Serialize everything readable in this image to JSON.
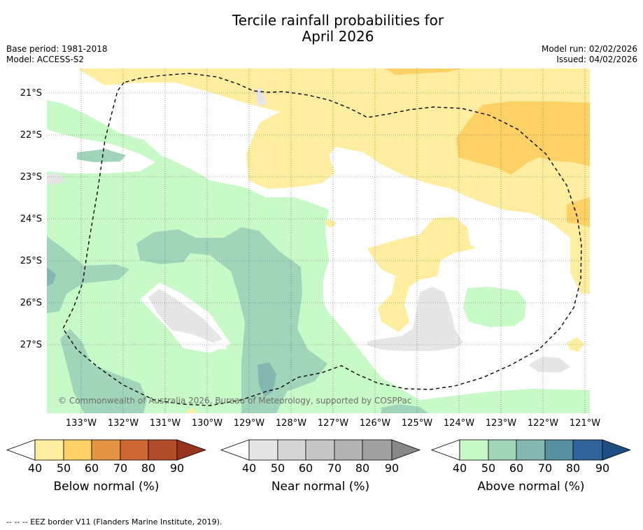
{
  "title": {
    "line1": "Tercile rainfall probabilities for",
    "line2": "April 2026"
  },
  "meta": {
    "base_period": "Base period: 1981-2018",
    "model": "Model: ACCESS-S2",
    "model_run": "Model run: 02/02/2026",
    "issued": "Issued: 04/02/2026"
  },
  "map": {
    "copyright": "© Commonwealth of Australia 2026, Bureau of Meteorology, supported by COSPPac",
    "lat_labels": [
      "21°S",
      "22°S",
      "23°S",
      "24°S",
      "25°S",
      "26°S",
      "27°S"
    ],
    "lon_labels": [
      "133°W",
      "132°W",
      "131°W",
      "130°W",
      "129°W",
      "128°W",
      "127°W",
      "126°W",
      "125°W",
      "124°W",
      "123°W",
      "122°W",
      "121°W"
    ],
    "colors": {
      "below": [
        "#ffeda0",
        "#fed165",
        "#e29344",
        "#cd6733",
        "#b04c29",
        "#97341d"
      ],
      "near": [
        "#e6e6e6",
        "#d6d6d6",
        "#c6c6c6",
        "#b3b3b3",
        "#a0a0a0",
        "#888888"
      ],
      "above": [
        "#c7fac6",
        "#a1d5ba",
        "#83b8b0",
        "#5890a0",
        "#2f6399",
        "#1e4d80"
      ]
    }
  },
  "colorbars": [
    {
      "id": "below",
      "title": "Below normal (%)",
      "ticks": [
        "40",
        "50",
        "60",
        "70",
        "80",
        "90"
      ]
    },
    {
      "id": "near",
      "title": "Near normal (%)",
      "ticks": [
        "40",
        "50",
        "60",
        "70",
        "80",
        "90"
      ]
    },
    {
      "id": "above",
      "title": "Above normal (%)",
      "ticks": [
        "40",
        "50",
        "60",
        "70",
        "80",
        "90"
      ]
    }
  ],
  "footer": "--  --  -- EEZ border V11 (Flanders Marine Institute, 2019)."
}
